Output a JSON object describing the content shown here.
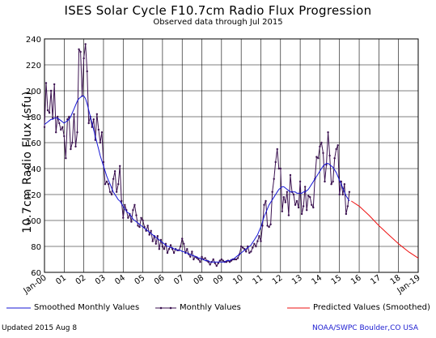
{
  "chart_data": {
    "type": "line",
    "title": "ISES Solar Cycle F10.7cm Radio Flux Progression",
    "subtitle": "Observed data through Jul 2015",
    "ylabel": "10.7cm Radio Flux (sfu)",
    "xlabel": "",
    "ylim": [
      60,
      240
    ],
    "yticks": [
      60,
      80,
      100,
      120,
      140,
      160,
      180,
      200,
      220,
      240
    ],
    "xlim": [
      2000.0,
      2019.0
    ],
    "xtick_labels": [
      "Jan-00",
      "01",
      "02",
      "03",
      "04",
      "05",
      "06",
      "07",
      "08",
      "09",
      "10",
      "11",
      "12",
      "13",
      "14",
      "15",
      "16",
      "17",
      "18",
      "Jan-19"
    ],
    "grid": true,
    "series": [
      {
        "name": "Monthly Values",
        "color": "#3b1250",
        "marker": "dot",
        "x_start": 2000.0,
        "x_step_months": 1,
        "values": [
          172,
          206,
          185,
          183,
          200,
          179,
          205,
          168,
          180,
          175,
          170,
          172,
          165,
          148,
          178,
          180,
          155,
          160,
          182,
          157,
          168,
          232,
          230,
          196,
          225,
          236,
          215,
          175,
          180,
          172,
          178,
          162,
          182,
          170,
          160,
          168,
          145,
          128,
          130,
          128,
          122,
          120,
          132,
          138,
          122,
          128,
          142,
          115,
          102,
          112,
          108,
          102,
          105,
          99,
          108,
          112,
          104,
          96,
          95,
          102,
          100,
          95,
          92,
          96,
          89,
          92,
          84,
          88,
          82,
          88,
          78,
          85,
          80,
          78,
          82,
          75,
          78,
          81,
          78,
          75,
          78,
          77,
          77,
          80,
          86,
          82,
          75,
          78,
          74,
          72,
          76,
          70,
          72,
          71,
          70,
          68,
          72,
          70,
          71,
          69,
          68,
          66,
          68,
          70,
          67,
          65,
          67,
          69,
          70,
          69,
          68,
          68,
          69,
          68,
          69,
          70,
          70,
          70,
          71,
          74,
          80,
          79,
          78,
          76,
          80,
          75,
          76,
          79,
          82,
          80,
          84,
          88,
          84,
          96,
          112,
          115,
          96,
          95,
          97,
          122,
          132,
          145,
          155,
          140,
          140,
          107,
          118,
          114,
          122,
          104,
          135,
          122,
          120,
          112,
          115,
          110,
          130,
          105,
          111,
          126,
          108,
          119,
          118,
          112,
          110,
          132,
          149,
          148,
          157,
          160,
          152,
          130,
          143,
          168,
          150,
          128,
          130,
          148,
          155,
          158,
          120,
          130,
          120,
          128,
          105,
          111,
          122
        ]
      },
      {
        "name": "Smoothed Monthly Values",
        "color": "#1515d6",
        "x_start": 2000.0,
        "x_step_months": 1,
        "values": [
          174,
          175,
          176,
          177,
          178,
          178,
          179,
          179,
          179,
          178,
          177,
          176,
          175,
          176,
          177,
          178,
          180,
          183,
          186,
          189,
          192,
          194,
          195,
          196,
          196,
          194,
          190,
          185,
          180,
          175,
          170,
          165,
          160,
          155,
          150,
          146,
          142,
          138,
          134,
          131,
          128,
          125,
          122,
          120,
          118,
          116,
          115,
          113,
          111,
          109,
          107,
          106,
          105,
          103,
          101,
          100,
          99,
          98,
          97,
          96,
          95,
          94,
          93,
          92,
          91,
          90,
          89,
          88,
          87,
          86,
          85,
          84,
          83,
          82,
          81,
          80,
          80,
          79,
          79,
          78,
          78,
          77,
          77,
          77,
          76,
          76,
          75,
          75,
          74,
          74,
          73,
          73,
          72,
          72,
          71,
          71,
          70,
          70,
          69,
          69,
          69,
          68,
          68,
          68,
          68,
          68,
          68,
          68,
          68,
          68,
          68,
          69,
          69,
          69,
          70,
          70,
          71,
          72,
          73,
          74,
          75,
          76,
          77,
          78,
          79,
          80,
          81,
          83,
          85,
          87,
          89,
          92,
          95,
          99,
          103,
          106,
          109,
          112,
          114,
          116,
          118,
          120,
          122,
          124,
          125,
          126,
          126,
          125,
          124,
          123,
          122,
          122,
          122,
          122,
          121,
          121,
          121,
          121,
          122,
          122,
          123,
          124,
          126,
          128,
          130,
          132,
          134,
          136,
          138,
          140,
          142,
          143,
          144,
          144,
          143,
          142,
          141,
          139,
          137,
          134,
          131,
          128,
          125,
          122,
          119,
          117,
          115
        ]
      },
      {
        "name": "Predicted Values (Smoothed)",
        "color": "#ee1111",
        "x": [
          2015.6,
          2016.0,
          2016.5,
          2017.0,
          2017.5,
          2018.0,
          2018.5,
          2019.0
        ],
        "values": [
          115,
          111,
          104,
          96,
          89,
          82,
          76,
          71
        ]
      }
    ]
  },
  "legend": {
    "smoothed": "Smoothed Monthly Values",
    "monthly": "Monthly Values",
    "predicted": "Predicted Values (Smoothed)"
  },
  "footer": {
    "updated": "Updated 2015 Aug  8",
    "source": "NOAA/SWPC Boulder,CO USA"
  },
  "colors": {
    "smoothed": "#1515d6",
    "monthly": "#3b1250",
    "predicted": "#ee1111",
    "footer_source": "#1b1bd0"
  }
}
